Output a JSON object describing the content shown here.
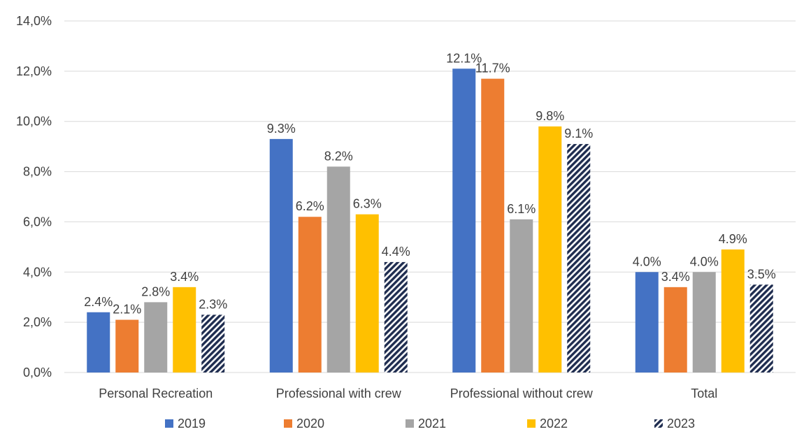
{
  "chart_data": {
    "type": "bar",
    "categories": [
      "Personal Recreation",
      "Professional with crew",
      "Professional without crew",
      "Total"
    ],
    "series": [
      {
        "name": "2019",
        "values": [
          2.4,
          9.3,
          12.1,
          4.0
        ],
        "labels": [
          "2.4%",
          "9.3%",
          "12.1%",
          "4.0%"
        ],
        "color": "#4472C4",
        "pattern": "solid"
      },
      {
        "name": "2020",
        "values": [
          2.1,
          6.2,
          11.7,
          3.4
        ],
        "labels": [
          "2.1%",
          "6.2%",
          "11.7%",
          "3.4%"
        ],
        "color": "#ED7D31",
        "pattern": "solid"
      },
      {
        "name": "2021",
        "values": [
          2.8,
          8.2,
          6.1,
          4.0
        ],
        "labels": [
          "2.8%",
          "8.2%",
          "6.1%",
          "4.0%"
        ],
        "color": "#A5A5A5",
        "pattern": "solid"
      },
      {
        "name": "2022",
        "values": [
          3.4,
          6.3,
          9.8,
          4.9
        ],
        "labels": [
          "3.4%",
          "6.3%",
          "9.8%",
          "4.9%"
        ],
        "color": "#FFC000",
        "pattern": "solid"
      },
      {
        "name": "2023",
        "values": [
          2.3,
          4.4,
          9.1,
          3.5
        ],
        "labels": [
          "2.3%",
          "4.4%",
          "9.1%",
          "3.5%"
        ],
        "color": "#1F2D50",
        "pattern": "diagonal-hatch"
      }
    ],
    "yticks": [
      {
        "value": 0,
        "label": "0,0%"
      },
      {
        "value": 2,
        "label": "2,0%"
      },
      {
        "value": 4,
        "label": "4,0%"
      },
      {
        "value": 6,
        "label": "6,0%"
      },
      {
        "value": 8,
        "label": "8,0%"
      },
      {
        "value": 10,
        "label": "10,0%"
      },
      {
        "value": 12,
        "label": "12,0%"
      },
      {
        "value": 14,
        "label": "14,0%"
      }
    ],
    "ylim": [
      0,
      14
    ],
    "title": "",
    "xlabel": "",
    "ylabel": "",
    "grid": true,
    "legend_position": "bottom"
  }
}
